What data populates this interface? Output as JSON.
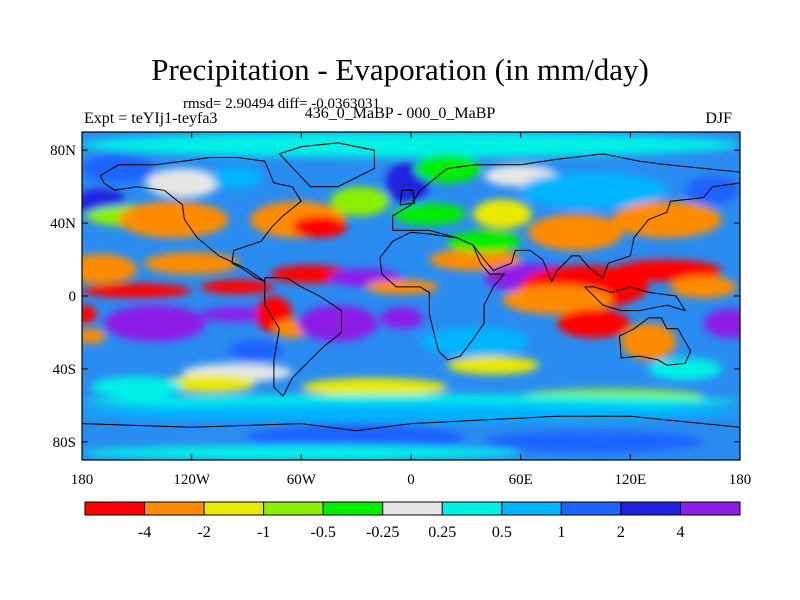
{
  "chart_data": {
    "type": "heatmap",
    "title": "Precipitation - Evaporation (in mm/day)",
    "subtitle": "rmsd= 2.90494  diff= -0.0363031",
    "left_label": "Expt = teYIj1-teyfa3",
    "center_label": "436_0_MaBP - 000_0_MaBP",
    "right_label": "DJF",
    "x_range": [
      -180,
      180
    ],
    "y_range": [
      -90,
      90
    ],
    "x_ticks": [
      {
        "value": -180,
        "label": "180"
      },
      {
        "value": -120,
        "label": "120W"
      },
      {
        "value": -60,
        "label": "60W"
      },
      {
        "value": 0,
        "label": "0"
      },
      {
        "value": 60,
        "label": "60E"
      },
      {
        "value": 120,
        "label": "120E"
      },
      {
        "value": 180,
        "label": "180"
      }
    ],
    "y_ticks": [
      {
        "value": 80,
        "label": "80N"
      },
      {
        "value": 40,
        "label": "40N"
      },
      {
        "value": 0,
        "label": "0"
      },
      {
        "value": -40,
        "label": "40S"
      },
      {
        "value": -80,
        "label": "80S"
      }
    ],
    "background_color": "#2a8cf0",
    "levels": [
      "-4",
      "-2",
      "-1",
      "-0.5",
      "-0.25",
      "0.25",
      "0.5",
      "1",
      "2",
      "4"
    ],
    "colors": [
      "#ff0000",
      "#ff8c00",
      "#eaea00",
      "#8cf000",
      "#00ee00",
      "#e6e6e6",
      "#00f0e6",
      "#00b4ff",
      "#1e64ff",
      "#2020e0",
      "#8c1ee6"
    ],
    "regions": [
      {
        "lon": 0,
        "lat": 83,
        "rx": 180,
        "ry": 7,
        "c": 6
      },
      {
        "lon": -160,
        "lat": 70,
        "rx": 20,
        "ry": 8,
        "c": 8
      },
      {
        "lon": -170,
        "lat": 52,
        "rx": 14,
        "ry": 7,
        "c": 9
      },
      {
        "lon": -150,
        "lat": 44,
        "rx": 28,
        "ry": 6,
        "c": 3
      },
      {
        "lon": -130,
        "lat": 42,
        "rx": 30,
        "ry": 10,
        "c": 1
      },
      {
        "lon": -125,
        "lat": 62,
        "rx": 20,
        "ry": 8,
        "c": 5
      },
      {
        "lon": -95,
        "lat": 65,
        "rx": 14,
        "ry": 6,
        "c": 7
      },
      {
        "lon": -62,
        "lat": 42,
        "rx": 26,
        "ry": 10,
        "c": 1
      },
      {
        "lon": -50,
        "lat": 38,
        "rx": 15,
        "ry": 6,
        "c": 0
      },
      {
        "lon": -28,
        "lat": 52,
        "rx": 16,
        "ry": 8,
        "c": 3
      },
      {
        "lon": -2,
        "lat": 62,
        "rx": 12,
        "ry": 12,
        "c": 9
      },
      {
        "lon": 20,
        "lat": 70,
        "rx": 18,
        "ry": 8,
        "c": 4
      },
      {
        "lon": 10,
        "lat": 45,
        "rx": 20,
        "ry": 6,
        "c": 4
      },
      {
        "lon": 60,
        "lat": 66,
        "rx": 20,
        "ry": 6,
        "c": 5
      },
      {
        "lon": 100,
        "lat": 58,
        "rx": 40,
        "ry": 10,
        "c": 7
      },
      {
        "lon": 90,
        "lat": 35,
        "rx": 26,
        "ry": 10,
        "c": 1
      },
      {
        "lon": 140,
        "lat": 42,
        "rx": 30,
        "ry": 10,
        "c": 1
      },
      {
        "lon": 165,
        "lat": 58,
        "rx": 15,
        "ry": 8,
        "c": 8
      },
      {
        "lon": 50,
        "lat": 45,
        "rx": 16,
        "ry": 8,
        "c": 2
      },
      {
        "lon": -170,
        "lat": 15,
        "rx": 20,
        "ry": 8,
        "c": 1
      },
      {
        "lon": -120,
        "lat": 18,
        "rx": 26,
        "ry": 6,
        "c": 1
      },
      {
        "lon": -150,
        "lat": 3,
        "rx": 30,
        "ry": 4,
        "c": 0
      },
      {
        "lon": -95,
        "lat": 5,
        "rx": 20,
        "ry": 4,
        "c": 0
      },
      {
        "lon": -55,
        "lat": 12,
        "rx": 22,
        "ry": 5,
        "c": 0
      },
      {
        "lon": -25,
        "lat": 10,
        "rx": 20,
        "ry": 5,
        "c": 10
      },
      {
        "lon": -5,
        "lat": 5,
        "rx": 20,
        "ry": 4,
        "c": 1
      },
      {
        "lon": 35,
        "lat": 20,
        "rx": 25,
        "ry": 6,
        "c": 1
      },
      {
        "lon": 40,
        "lat": 30,
        "rx": 20,
        "ry": 6,
        "c": 4
      },
      {
        "lon": 65,
        "lat": 10,
        "rx": 25,
        "ry": 8,
        "c": 10
      },
      {
        "lon": 95,
        "lat": 5,
        "rx": 35,
        "ry": 12,
        "c": 0
      },
      {
        "lon": 140,
        "lat": 14,
        "rx": 30,
        "ry": 6,
        "c": 0
      },
      {
        "lon": 160,
        "lat": 5,
        "rx": 18,
        "ry": 6,
        "c": 1
      },
      {
        "lon": -140,
        "lat": -15,
        "rx": 28,
        "ry": 10,
        "c": 10
      },
      {
        "lon": -178,
        "lat": -10,
        "rx": 6,
        "ry": 5,
        "c": 0
      },
      {
        "lon": -175,
        "lat": -22,
        "rx": 8,
        "ry": 4,
        "c": 1
      },
      {
        "lon": -95,
        "lat": -10,
        "rx": 20,
        "ry": 4,
        "c": 10
      },
      {
        "lon": -75,
        "lat": -10,
        "rx": 10,
        "ry": 10,
        "c": 0
      },
      {
        "lon": -65,
        "lat": -18,
        "rx": 10,
        "ry": 5,
        "c": 1
      },
      {
        "lon": -85,
        "lat": -30,
        "rx": 15,
        "ry": 6,
        "c": 8
      },
      {
        "lon": -95,
        "lat": -42,
        "rx": 30,
        "ry": 5,
        "c": 5
      },
      {
        "lon": -110,
        "lat": -48,
        "rx": 25,
        "ry": 5,
        "c": 2
      },
      {
        "lon": -40,
        "lat": -15,
        "rx": 22,
        "ry": 10,
        "c": 10
      },
      {
        "lon": -5,
        "lat": -12,
        "rx": 12,
        "ry": 6,
        "c": 10
      },
      {
        "lon": 35,
        "lat": -25,
        "rx": 30,
        "ry": 8,
        "c": 7
      },
      {
        "lon": 45,
        "lat": -38,
        "rx": 25,
        "ry": 5,
        "c": 2
      },
      {
        "lon": 80,
        "lat": -2,
        "rx": 30,
        "ry": 8,
        "c": 1
      },
      {
        "lon": 100,
        "lat": -15,
        "rx": 20,
        "ry": 8,
        "c": 0
      },
      {
        "lon": 130,
        "lat": -25,
        "rx": 15,
        "ry": 10,
        "c": 1
      },
      {
        "lon": 175,
        "lat": -15,
        "rx": 15,
        "ry": 8,
        "c": 10
      },
      {
        "lon": 150,
        "lat": -40,
        "rx": 20,
        "ry": 6,
        "c": 6
      },
      {
        "lon": -20,
        "lat": -50,
        "rx": 40,
        "ry": 5,
        "c": 2
      },
      {
        "lon": 110,
        "lat": -55,
        "rx": 50,
        "ry": 4,
        "c": 3
      },
      {
        "lon": -150,
        "lat": -50,
        "rx": 25,
        "ry": 6,
        "c": 6
      },
      {
        "lon": 0,
        "lat": -58,
        "rx": 180,
        "ry": 4,
        "c": 6
      },
      {
        "lon": 0,
        "lat": -64,
        "rx": 180,
        "ry": 5,
        "c": 7
      },
      {
        "lon": -30,
        "lat": -78,
        "rx": 60,
        "ry": 8,
        "c": 8
      },
      {
        "lon": 100,
        "lat": -80,
        "rx": 60,
        "ry": 6,
        "c": 8
      },
      {
        "lon": -60,
        "lat": -86,
        "rx": 120,
        "ry": 4,
        "c": 6
      }
    ],
    "coastlines": [
      [
        [
          -170,
          66
        ],
        [
          -160,
          72
        ],
        [
          -140,
          72
        ],
        [
          -125,
          74
        ],
        [
          -110,
          76
        ],
        [
          -95,
          76
        ],
        [
          -80,
          74
        ],
        [
          -75,
          62
        ],
        [
          -65,
          60
        ],
        [
          -60,
          52
        ],
        [
          -70,
          44
        ],
        [
          -76,
          38
        ],
        [
          -82,
          30
        ],
        [
          -88,
          28
        ],
        [
          -97,
          25
        ],
        [
          -98,
          18
        ],
        [
          -92,
          15
        ],
        [
          -85,
          10
        ],
        [
          -80,
          8
        ],
        [
          -90,
          15
        ],
        [
          -105,
          22
        ],
        [
          -117,
          32
        ],
        [
          -124,
          42
        ],
        [
          -125,
          50
        ],
        [
          -135,
          58
        ],
        [
          -150,
          60
        ],
        [
          -162,
          58
        ],
        [
          -168,
          62
        ],
        [
          -170,
          66
        ]
      ],
      [
        [
          -80,
          10
        ],
        [
          -68,
          10
        ],
        [
          -60,
          5
        ],
        [
          -50,
          0
        ],
        [
          -38,
          -8
        ],
        [
          -38,
          -20
        ],
        [
          -48,
          -28
        ],
        [
          -58,
          -38
        ],
        [
          -65,
          -45
        ],
        [
          -70,
          -55
        ],
        [
          -75,
          -50
        ],
        [
          -75,
          -35
        ],
        [
          -72,
          -18
        ],
        [
          -80,
          -5
        ],
        [
          -80,
          10
        ]
      ],
      [
        [
          -10,
          36
        ],
        [
          -10,
          44
        ],
        [
          0,
          50
        ],
        [
          5,
          58
        ],
        [
          10,
          62
        ],
        [
          20,
          70
        ],
        [
          35,
          72
        ],
        [
          60,
          72
        ],
        [
          80,
          75
        ],
        [
          105,
          78
        ],
        [
          125,
          74
        ],
        [
          140,
          72
        ],
        [
          160,
          70
        ],
        [
          180,
          68
        ],
        [
          180,
          62
        ],
        [
          165,
          60
        ],
        [
          160,
          54
        ],
        [
          142,
          52
        ],
        [
          140,
          46
        ],
        [
          130,
          42
        ],
        [
          122,
          32
        ],
        [
          120,
          22
        ],
        [
          108,
          18
        ],
        [
          105,
          10
        ],
        [
          98,
          15
        ],
        [
          92,
          22
        ],
        [
          88,
          22
        ],
        [
          80,
          14
        ],
        [
          77,
          8
        ],
        [
          72,
          20
        ],
        [
          65,
          25
        ],
        [
          57,
          25
        ],
        [
          55,
          18
        ],
        [
          45,
          14
        ],
        [
          40,
          20
        ],
        [
          34,
          28
        ],
        [
          25,
          32
        ],
        [
          10,
          36
        ],
        [
          -5,
          36
        ],
        [
          -10,
          36
        ]
      ],
      [
        [
          -17,
          21
        ],
        [
          -16,
          12
        ],
        [
          -8,
          5
        ],
        [
          5,
          5
        ],
        [
          10,
          2
        ],
        [
          10,
          -10
        ],
        [
          12,
          -18
        ],
        [
          15,
          -30
        ],
        [
          20,
          -35
        ],
        [
          27,
          -33
        ],
        [
          33,
          -25
        ],
        [
          40,
          -15
        ],
        [
          40,
          -5
        ],
        [
          45,
          5
        ],
        [
          51,
          12
        ],
        [
          43,
          12
        ],
        [
          38,
          18
        ],
        [
          34,
          28
        ],
        [
          25,
          32
        ],
        [
          10,
          34
        ],
        [
          0,
          35
        ],
        [
          -10,
          30
        ],
        [
          -17,
          21
        ]
      ],
      [
        [
          114,
          -22
        ],
        [
          122,
          -18
        ],
        [
          130,
          -12
        ],
        [
          137,
          -12
        ],
        [
          140,
          -18
        ],
        [
          146,
          -18
        ],
        [
          150,
          -25
        ],
        [
          153,
          -30
        ],
        [
          150,
          -37
        ],
        [
          140,
          -38
        ],
        [
          135,
          -35
        ],
        [
          125,
          -33
        ],
        [
          115,
          -34
        ],
        [
          114,
          -22
        ]
      ],
      [
        [
          -55,
          60
        ],
        [
          -40,
          60
        ],
        [
          -20,
          70
        ],
        [
          -20,
          80
        ],
        [
          -40,
          84
        ],
        [
          -60,
          82
        ],
        [
          -72,
          78
        ],
        [
          -55,
          60
        ]
      ],
      [
        [
          -6,
          50
        ],
        [
          2,
          51
        ],
        [
          1,
          58
        ],
        [
          -5,
          58
        ],
        [
          -6,
          50
        ]
      ],
      [
        [
          95,
          5
        ],
        [
          105,
          -5
        ],
        [
          115,
          -8
        ],
        [
          125,
          -8
        ],
        [
          140,
          -5
        ],
        [
          150,
          -8
        ],
        [
          145,
          0
        ],
        [
          130,
          2
        ],
        [
          120,
          5
        ],
        [
          110,
          2
        ],
        [
          100,
          5
        ],
        [
          95,
          5
        ]
      ],
      [
        [
          -180,
          -70
        ],
        [
          -120,
          -72
        ],
        [
          -60,
          -70
        ],
        [
          -30,
          -74
        ],
        [
          0,
          -70
        ],
        [
          40,
          -68
        ],
        [
          80,
          -66
        ],
        [
          120,
          -66
        ],
        [
          160,
          -70
        ],
        [
          180,
          -72
        ]
      ]
    ]
  }
}
